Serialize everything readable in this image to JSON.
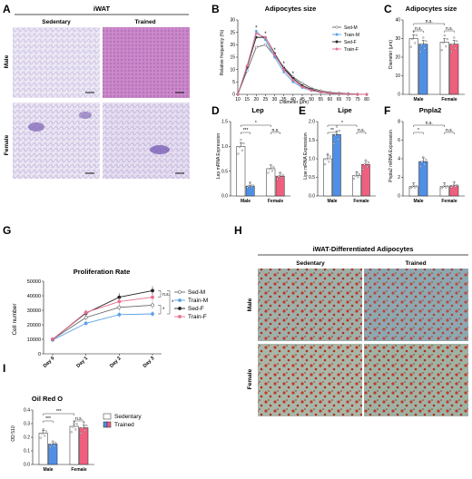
{
  "panel_labels": [
    "A",
    "B",
    "C",
    "D",
    "E",
    "F",
    "G",
    "H",
    "I"
  ],
  "colors": {
    "sed_male": "#ffffff",
    "train_male": "#4f8fe6",
    "sed_female": "#ffffff",
    "train_female": "#ef5f7e",
    "sed_m_line": "#666666",
    "train_m_line": "#5aa0e6",
    "sed_f_line": "#222222",
    "train_f_line": "#ea6f8f"
  },
  "panel_a": {
    "title": "iWAT",
    "col_labels": [
      "Sedentary",
      "Trained"
    ],
    "row_labels": [
      "Male",
      "Female"
    ],
    "tissue_colors": [
      "#d9d0ea",
      "#c27bc3",
      "#ddd3ec",
      "#d8cce8"
    ]
  },
  "panel_h": {
    "title": "iWAT-Differentiated Adipocytes",
    "col_labels": [
      "Sedentary",
      "Trained"
    ],
    "row_labels": [
      "Male",
      "Female"
    ]
  },
  "chart_data": [
    {
      "id": "B",
      "type": "line",
      "title": "Adipocytes size",
      "xlabel": "Diameter (μm)",
      "ylabel": "Relative frequency (%)",
      "x": [
        10,
        15,
        20,
        25,
        30,
        35,
        40,
        45,
        50,
        55,
        60,
        65,
        70,
        75,
        80
      ],
      "ylim": [
        0,
        30
      ],
      "yticks": [
        0,
        5,
        10,
        15,
        20,
        25,
        30
      ],
      "series": [
        {
          "name": "Sed-M",
          "values": [
            0,
            9.5,
            19,
            20,
            15.5,
            11,
            7,
            4.5,
            2.5,
            1.5,
            0.8,
            0.5,
            0.3,
            0.1,
            0
          ]
        },
        {
          "name": "Train-M",
          "values": [
            0,
            10.5,
            25.5,
            22,
            15,
            9,
            5,
            2.7,
            1.5,
            0.8,
            0.4,
            0.2,
            0.1,
            0,
            0
          ]
        },
        {
          "name": "Sed-F",
          "values": [
            0,
            11,
            23,
            23,
            16.5,
            10.5,
            6.5,
            3.5,
            2,
            1,
            0.5,
            0.3,
            0.1,
            0,
            0
          ]
        },
        {
          "name": "Train-F",
          "values": [
            0,
            11.5,
            24.5,
            23,
            16,
            10,
            5.8,
            3,
            1.6,
            0.9,
            0.5,
            0.3,
            0.1,
            0,
            0
          ]
        }
      ],
      "annotations": [
        "*",
        "*",
        "*",
        "*",
        "*"
      ]
    },
    {
      "id": "C",
      "type": "bar",
      "title": "Adipocytes size",
      "ylabel": "Diameter (μm)",
      "ylim": [
        0,
        40
      ],
      "yticks": [
        0,
        10,
        20,
        30,
        40
      ],
      "categories": [
        "Male",
        "Female"
      ],
      "series": [
        {
          "name": "Sedentary",
          "values": [
            30,
            28
          ]
        },
        {
          "name": "Trained",
          "values": [
            27,
            27
          ]
        }
      ],
      "annotations": [
        "n.s.",
        "n.s.",
        "n.s."
      ]
    },
    {
      "id": "D",
      "type": "bar",
      "title": "Lep",
      "ylabel": "Lep mRNA Expression",
      "ylim": [
        0,
        1.5
      ],
      "yticks": [
        0.0,
        0.5,
        1.0,
        1.5
      ],
      "categories": [
        "Male",
        "Female"
      ],
      "series": [
        {
          "name": "Sedentary",
          "values": [
            1.0,
            0.55
          ]
        },
        {
          "name": "Trained",
          "values": [
            0.2,
            0.4
          ]
        }
      ],
      "annotations": [
        "***",
        "*",
        "n.s."
      ]
    },
    {
      "id": "E",
      "type": "bar",
      "title": "Lipe",
      "ylabel": "Lipe mRNA Expression",
      "ylim": [
        0,
        2.0
      ],
      "yticks": [
        0.0,
        0.5,
        1.0,
        1.5,
        2.0
      ],
      "categories": [
        "Male",
        "Female"
      ],
      "series": [
        {
          "name": "Sedentary",
          "values": [
            1.0,
            0.55
          ]
        },
        {
          "name": "Trained",
          "values": [
            1.65,
            0.85
          ]
        }
      ],
      "annotations": [
        "**",
        "*",
        "n.s."
      ]
    },
    {
      "id": "F",
      "type": "bar",
      "title": "Pnpla2",
      "ylabel": "Pnpla2 mRNA Expression",
      "ylim": [
        0,
        8
      ],
      "yticks": [
        0,
        2,
        4,
        6,
        8
      ],
      "categories": [
        "Male",
        "Female"
      ],
      "series": [
        {
          "name": "Sedentary",
          "values": [
            1.0,
            1.0
          ]
        },
        {
          "name": "Trained",
          "values": [
            3.7,
            1.1
          ]
        }
      ],
      "annotations": [
        "*",
        "n.s.",
        "n.s."
      ]
    },
    {
      "id": "G",
      "type": "line",
      "title": "Proliferation Rate",
      "ylabel": "Cell number",
      "ylim": [
        0,
        50000
      ],
      "yticks": [
        0,
        10000,
        20000,
        30000,
        40000,
        50000
      ],
      "categories": [
        "Day 0",
        "Day 1",
        "Day 2",
        "Day 3"
      ],
      "series": [
        {
          "name": "Sed-M",
          "values": [
            10000,
            25000,
            32000,
            33500
          ]
        },
        {
          "name": "Train-M",
          "values": [
            9500,
            21000,
            27000,
            27500
          ]
        },
        {
          "name": "Sed-F",
          "values": [
            10000,
            28000,
            39000,
            43500
          ]
        },
        {
          "name": "Train-F",
          "values": [
            10000,
            28500,
            36000,
            39000
          ]
        }
      ],
      "annotations": [
        "n.s.",
        "*",
        "*"
      ]
    },
    {
      "id": "I",
      "type": "bar",
      "title": "Oil Red O",
      "ylabel": "OD 510",
      "ylim": [
        0,
        0.4
      ],
      "yticks": [
        0.0,
        0.1,
        0.2,
        0.3,
        0.4
      ],
      "categories": [
        "Male",
        "Female"
      ],
      "series": [
        {
          "name": "Sedentary",
          "values": [
            0.23,
            0.28
          ]
        },
        {
          "name": "Trained",
          "values": [
            0.15,
            0.27
          ]
        }
      ],
      "annotations": [
        "***",
        "***",
        "n.s."
      ]
    }
  ]
}
